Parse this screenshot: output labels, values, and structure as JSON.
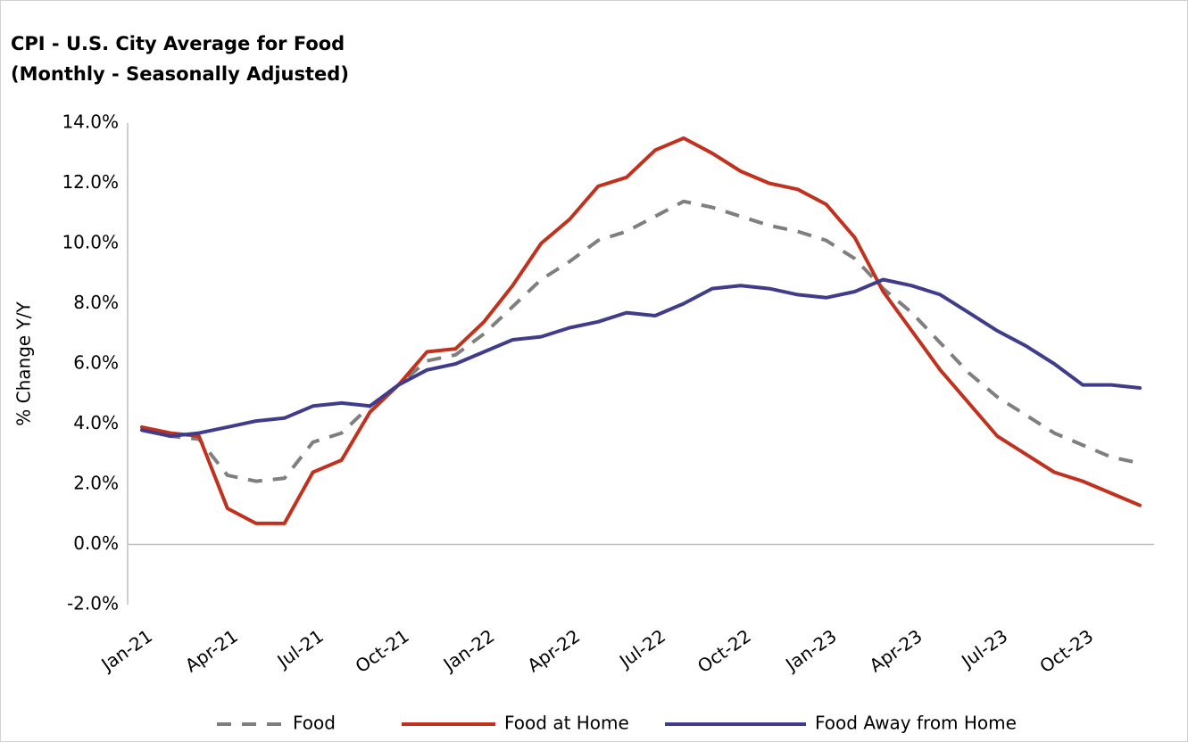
{
  "chart_data": {
    "type": "line",
    "title": "CPI - U.S. City Average for Food",
    "subtitle": "(Monthly - Seasonally Adjusted)",
    "y_label": "% Change Y/Y",
    "categories": [
      "Jan-21",
      null,
      null,
      "Apr-21",
      null,
      null,
      "Jul-21",
      null,
      null,
      "Oct-21",
      null,
      null,
      "Jan-22",
      null,
      null,
      "Apr-22",
      null,
      null,
      "Jul-22",
      null,
      null,
      "Oct-22",
      null,
      null,
      "Jan-23",
      null,
      null,
      "Apr-23",
      null,
      null,
      "Jul-23",
      null,
      null,
      "Oct-23",
      null,
      null
    ],
    "series": [
      {
        "name": "Food",
        "color": "#7f7f7f",
        "dashed": true,
        "values": [
          3.8,
          3.6,
          3.5,
          2.3,
          2.1,
          2.2,
          3.4,
          3.7,
          4.6,
          5.3,
          6.1,
          6.3,
          7.0,
          7.9,
          8.8,
          9.4,
          10.1,
          10.4,
          10.9,
          11.4,
          11.2,
          10.9,
          10.6,
          10.4,
          10.1,
          9.5,
          8.5,
          7.7,
          6.7,
          5.7,
          4.9,
          4.3,
          3.7,
          3.3,
          2.9,
          2.7
        ]
      },
      {
        "name": "Food at Home",
        "color": "#c0311e",
        "values": [
          3.9,
          3.7,
          3.6,
          1.2,
          0.7,
          0.7,
          2.4,
          2.8,
          4.4,
          5.3,
          6.4,
          6.5,
          7.4,
          8.6,
          10.0,
          10.8,
          11.9,
          12.2,
          13.1,
          13.5,
          13.0,
          12.4,
          12.0,
          11.8,
          11.3,
          10.2,
          8.4,
          7.1,
          5.8,
          4.7,
          3.6,
          3.0,
          2.4,
          2.1,
          1.7,
          1.3
        ]
      },
      {
        "name": "Food Away from Home",
        "color": "#3f3c8c",
        "values": [
          3.8,
          3.6,
          3.7,
          3.9,
          4.1,
          4.2,
          4.6,
          4.7,
          4.6,
          5.3,
          5.8,
          6.0,
          6.4,
          6.8,
          6.9,
          7.2,
          7.4,
          7.7,
          7.6,
          8.0,
          8.5,
          8.6,
          8.5,
          8.3,
          8.2,
          8.4,
          8.8,
          8.6,
          8.3,
          7.7,
          7.1,
          6.6,
          6.0,
          5.3,
          5.3,
          5.2
        ]
      }
    ],
    "ylim": [
      -2,
      14
    ],
    "yticks": [
      {
        "value": -2,
        "label": "-2.0%"
      },
      {
        "value": 0,
        "label": "0.0%"
      },
      {
        "value": 2,
        "label": "2.0%"
      },
      {
        "value": 4,
        "label": "4.0%"
      },
      {
        "value": 6,
        "label": "6.0%"
      },
      {
        "value": 8,
        "label": "8.0%"
      },
      {
        "value": 10,
        "label": "10.0%"
      },
      {
        "value": 12,
        "label": "12.0%"
      },
      {
        "value": 14,
        "label": "14.0%"
      }
    ],
    "grid": false,
    "legend": "bottom"
  }
}
